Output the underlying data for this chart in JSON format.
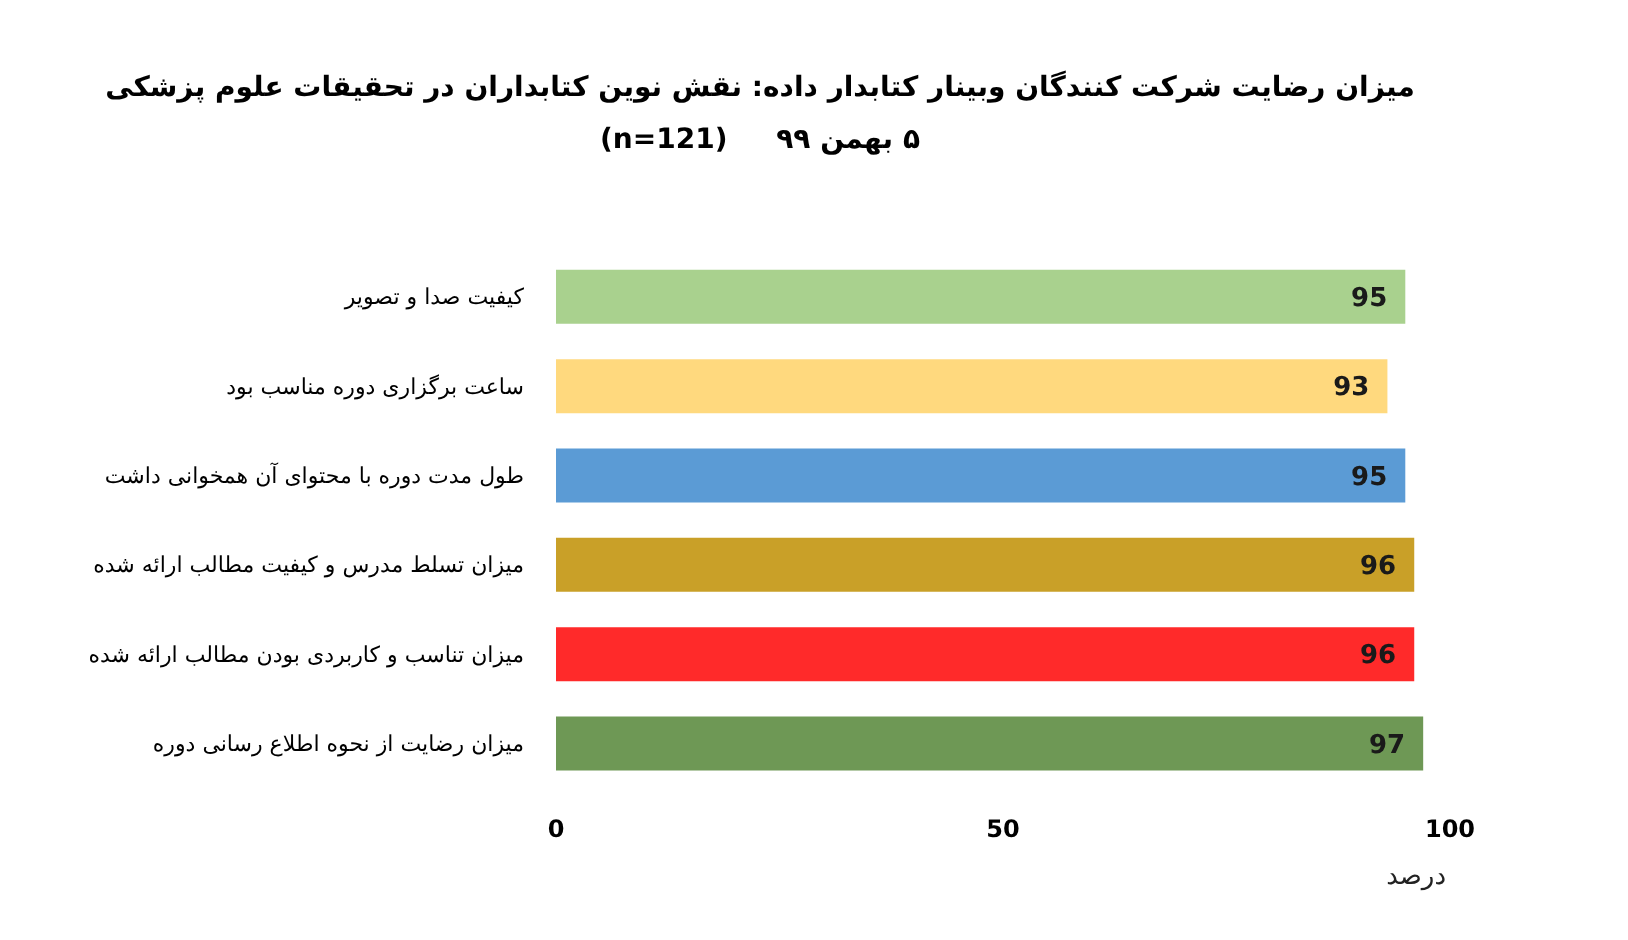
{
  "chart_data": {
    "type": "bar",
    "orientation": "horizontal",
    "title": "میزان رضایت شرکت کنندگان وبینار کتابدار داده: نقش نوین کتابداران در تحقیقات علوم پزشکی",
    "subtitle": "۵ بهمن ۹۹     (n=121)",
    "categories": [
      "کیفیت صدا و تصویر",
      "ساعت برگزاری دوره مناسب بود",
      "طول مدت دوره با محتوای آن همخوانی داشت",
      "میزان تسلط مدرس و کیفیت مطالب ارائه شده",
      "میزان تناسب و کاربردی بودن مطالب ارائه شده",
      "میزان رضایت از نحوه اطلاع رسانی دوره"
    ],
    "values": [
      95,
      93,
      95,
      96,
      96,
      97
    ],
    "colors": [
      "#a9d18e",
      "#ffd97e",
      "#5b9bd5",
      "#c9a028",
      "#ff2a2a",
      "#6e9855"
    ],
    "xlim": [
      0,
      100
    ],
    "xticks": [
      0,
      50,
      100
    ],
    "xlabel": "درصد",
    "data_labels": true
  }
}
